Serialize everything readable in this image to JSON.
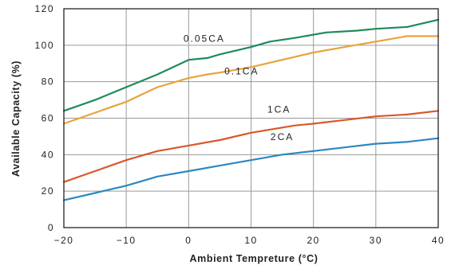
{
  "chart_data": {
    "type": "line",
    "title": "",
    "xlabel": "Ambient Tempreture (°C)",
    "ylabel": "Available Capacity (%)",
    "xlim": [
      -20,
      40
    ],
    "ylim": [
      0,
      120
    ],
    "x_ticks": [
      -20,
      -10,
      0,
      10,
      20,
      30,
      40
    ],
    "y_ticks": [
      0,
      20,
      40,
      60,
      80,
      100,
      120
    ],
    "x_tick_labels": [
      "−20",
      "−10",
      "0",
      "10",
      "20",
      "30",
      "40"
    ],
    "y_tick_labels": [
      "0",
      "20",
      "40",
      "60",
      "80",
      "100",
      "120"
    ],
    "grid": true,
    "legend": "none (series labelled directly on chart)",
    "series": [
      {
        "name": "0.05CA",
        "color": "#1e8a5a",
        "x": [
          -20,
          -15,
          -10,
          -5,
          0,
          3,
          5,
          10,
          13,
          17,
          22,
          27,
          30,
          35,
          40
        ],
        "y": [
          64,
          70,
          77,
          84,
          92,
          93,
          95,
          99,
          102,
          104,
          107,
          108,
          109,
          110,
          114
        ]
      },
      {
        "name": "0.1CA",
        "color": "#e8a33a",
        "x": [
          -20,
          -15,
          -10,
          -5,
          0,
          3,
          5,
          10,
          15,
          20,
          25,
          30,
          35,
          40
        ],
        "y": [
          57,
          63,
          69,
          77,
          82,
          84,
          85,
          88,
          92,
          96,
          99,
          102,
          105,
          105
        ]
      },
      {
        "name": "1CA",
        "color": "#d9572b",
        "x": [
          -20,
          -15,
          -10,
          -5,
          0,
          5,
          10,
          17,
          20,
          25,
          30,
          35,
          40
        ],
        "y": [
          25,
          31,
          37,
          42,
          45,
          48,
          52,
          56,
          57,
          59,
          61,
          62,
          64
        ]
      },
      {
        "name": "2CA",
        "color": "#2b88c0",
        "x": [
          -20,
          -15,
          -10,
          -5,
          0,
          5,
          10,
          15,
          20,
          25,
          30,
          35,
          40
        ],
        "y": [
          15,
          19,
          23,
          28,
          31,
          34,
          37,
          40,
          42,
          44,
          46,
          47,
          49
        ]
      }
    ],
    "annotations": [
      {
        "text": "0.05CA",
        "x": 2.5,
        "y": 102
      },
      {
        "text": "0.1CA",
        "x": 8.5,
        "y": 84
      },
      {
        "text": "1CA",
        "x": 14.5,
        "y": 63
      },
      {
        "text": "2CA",
        "x": 15.0,
        "y": 48
      }
    ]
  }
}
